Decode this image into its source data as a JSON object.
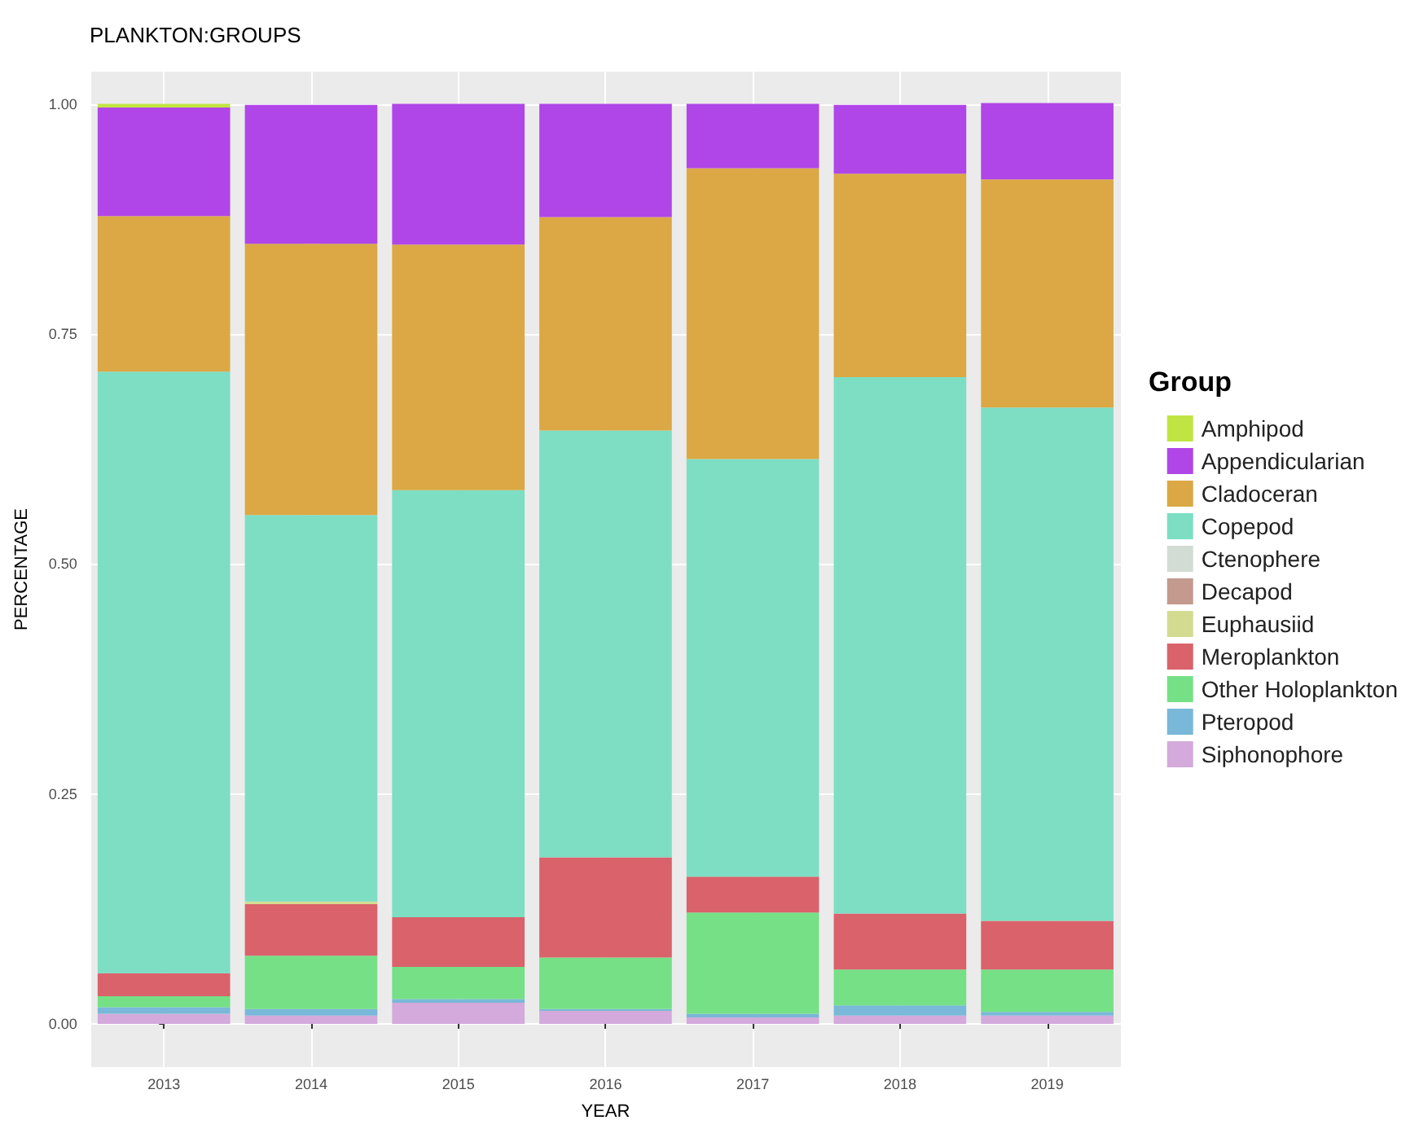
{
  "chart_data": {
    "type": "bar",
    "title": "PLANKTON:GROUPS",
    "xlabel": "YEAR",
    "ylabel": "PERCENTAGE",
    "legend_title": "Group",
    "stacked": true,
    "grid": true,
    "legend": "right",
    "categories": [
      "2013",
      "2014",
      "2015",
      "2016",
      "2017",
      "2018",
      "2019"
    ],
    "ylim": [
      -0.047,
      1.035
    ],
    "yticks": [
      {
        "value": 0,
        "label": "0.00"
      },
      {
        "value": 0.25,
        "label": "0.25"
      },
      {
        "value": 0.5,
        "label": "0.50"
      },
      {
        "value": 0.75,
        "label": "0.75"
      },
      {
        "value": 1,
        "label": "1.00"
      }
    ],
    "series": [
      {
        "name": "Siphonophore",
        "color": "#d3aadb",
        "values": [
          0.011,
          0.009,
          0.023,
          0.014,
          0.007,
          0.009,
          0.009
        ]
      },
      {
        "name": "Pteropod",
        "color": "#79b8d8",
        "values": [
          0.007,
          0.007,
          0.004,
          0.002,
          0.004,
          0.011,
          0.004
        ]
      },
      {
        "name": "Other Holoplankton",
        "color": "#75e086",
        "values": [
          0.012,
          0.058,
          0.035,
          0.056,
          0.11,
          0.039,
          0.046
        ]
      },
      {
        "name": "Meroplankton",
        "color": "#d9626b",
        "values": [
          0.025,
          0.056,
          0.054,
          0.109,
          0.039,
          0.061,
          0.053
        ]
      },
      {
        "name": "Euphausiid",
        "color": "#d3db90",
        "values": [
          0,
          0.003,
          0,
          0,
          0,
          0,
          0
        ]
      },
      {
        "name": "Decapod",
        "color": "#c49a8e",
        "values": [
          0,
          0,
          0,
          0,
          0,
          0,
          0
        ]
      },
      {
        "name": "Ctenophere",
        "color": "#d3dcd4",
        "values": [
          0,
          0,
          0,
          0,
          0,
          0,
          0
        ]
      },
      {
        "name": "Copepod",
        "color": "#7ddec4",
        "values": [
          0.654,
          0.42,
          0.464,
          0.464,
          0.454,
          0.583,
          0.558
        ]
      },
      {
        "name": "Cladoceran",
        "color": "#dba845",
        "values": [
          0.169,
          0.295,
          0.267,
          0.232,
          0.316,
          0.221,
          0.248
        ]
      },
      {
        "name": "Appendicularian",
        "color": "#b046e8",
        "values": [
          0.118,
          0.151,
          0.153,
          0.123,
          0.07,
          0.075,
          0.083
        ]
      },
      {
        "name": "Amphipod",
        "color": "#c0e542",
        "values": [
          0.004,
          0,
          0,
          0,
          0,
          0,
          0
        ]
      }
    ]
  }
}
